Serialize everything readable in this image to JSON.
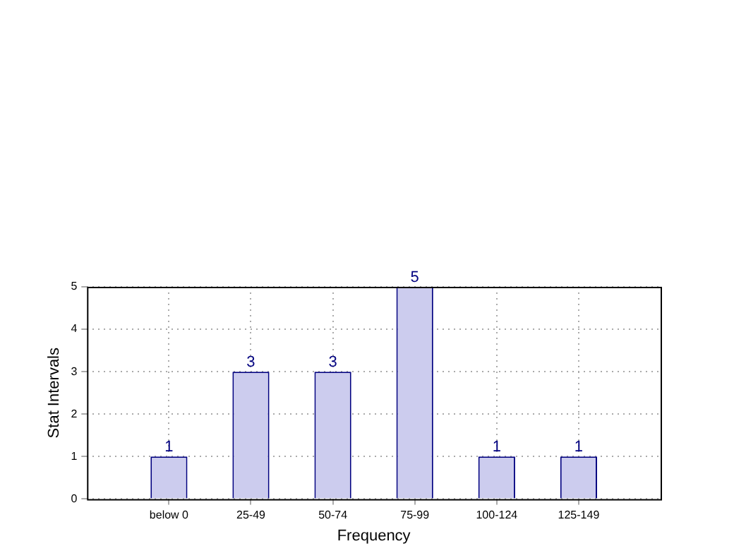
{
  "chart_data": {
    "type": "bar",
    "xlabel": "Frequency",
    "ylabel": "Stat Intervals",
    "categories": [
      "below 0",
      "25-49",
      "50-74",
      "75-99",
      "100-124",
      "125-149"
    ],
    "values": [
      1,
      3,
      3,
      5,
      1,
      1
    ],
    "color": "#ccccee",
    "ylim": [
      0,
      5
    ],
    "yticks": [
      0,
      1,
      2,
      3,
      4,
      5
    ],
    "grid": true,
    "data_labels": true,
    "legend": false
  }
}
